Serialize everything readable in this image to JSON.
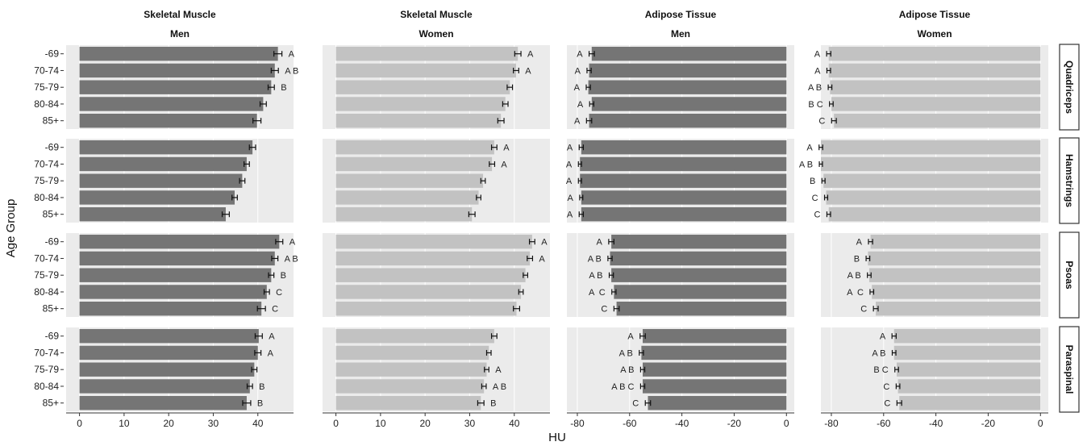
{
  "chart_data": {
    "type": "bar",
    "orientation": "horizontal",
    "xlabel": "HU",
    "ylabel": "Age Group",
    "categories": [
      "-69",
      "70-74",
      "75-79",
      "80-84",
      "85+"
    ],
    "colors": {
      "men": "#757575",
      "women": "#c2c2c2",
      "panel_bg": "#ebebeb"
    },
    "columns": [
      {
        "id": "sm-men",
        "title_line1": "Skeletal Muscle",
        "title_line2": "Men",
        "sex": "men",
        "xlim": [
          -3,
          48
        ],
        "ticks": [
          0,
          10,
          20,
          30,
          40
        ]
      },
      {
        "id": "sm-women",
        "title_line1": "Skeletal Muscle",
        "title_line2": "Women",
        "sex": "women",
        "xlim": [
          -3,
          48
        ],
        "ticks": [
          0,
          10,
          20,
          30,
          40
        ]
      },
      {
        "id": "at-men",
        "title_line1": "Adipose Tissue",
        "title_line2": "Men",
        "sex": "men",
        "xlim": [
          -84,
          3
        ],
        "ticks": [
          -80,
          -60,
          -40,
          -20,
          0
        ]
      },
      {
        "id": "at-women",
        "title_line1": "Adipose Tissue",
        "title_line2": "Women",
        "sex": "women",
        "xlim": [
          -84,
          3
        ],
        "ticks": [
          -80,
          -60,
          -40,
          -20,
          0
        ]
      }
    ],
    "rows": [
      {
        "muscle": "Quadriceps",
        "values": [
          [
            44.5,
            43.8,
            43.0,
            41.2,
            39.8
          ],
          [
            40.8,
            40.4,
            39.0,
            38.0,
            37.0
          ],
          [
            -74.5,
            -75.5,
            -75.8,
            -74.5,
            -75.5
          ],
          [
            -81.0,
            -81.0,
            -80.5,
            -80.0,
            -79.0
          ]
        ],
        "errors": [
          [
            0.9,
            0.8,
            0.7,
            0.7,
            0.9
          ],
          [
            0.7,
            0.6,
            0.6,
            0.6,
            0.7
          ],
          [
            1.0,
            0.8,
            0.8,
            0.8,
            1.0
          ],
          [
            0.8,
            0.7,
            0.7,
            0.7,
            0.9
          ]
        ],
        "labels": [
          [
            "A",
            "A B",
            "B",
            "",
            ""
          ],
          [
            "A",
            "A",
            "",
            "",
            ""
          ],
          [
            "A",
            "A",
            "A",
            "A",
            "A"
          ],
          [
            "A",
            "A",
            "A B",
            "B C",
            "C"
          ]
        ]
      },
      {
        "muscle": "Hamstrings",
        "values": [
          [
            38.8,
            37.5,
            36.5,
            34.8,
            32.8
          ],
          [
            35.5,
            35.0,
            33.0,
            32.0,
            30.5
          ],
          [
            -78.5,
            -79.0,
            -79.0,
            -78.5,
            -78.5
          ],
          [
            -84.0,
            -84.0,
            -83.0,
            -82.0,
            -81.0
          ]
        ],
        "errors": [
          [
            0.7,
            0.6,
            0.6,
            0.6,
            0.8
          ],
          [
            0.6,
            0.6,
            0.5,
            0.5,
            0.7
          ],
          [
            0.8,
            0.6,
            0.6,
            0.6,
            0.8
          ],
          [
            0.7,
            0.6,
            0.6,
            0.6,
            0.7
          ]
        ],
        "labels": [
          [
            "",
            "",
            "",
            "",
            ""
          ],
          [
            "A",
            "A",
            "",
            "",
            ""
          ],
          [
            "A",
            "A",
            "A",
            "A",
            "A"
          ],
          [
            "A",
            "A B",
            "B",
            "C",
            "C"
          ]
        ]
      },
      {
        "muscle": "Psoas",
        "values": [
          [
            44.8,
            43.8,
            43.0,
            42.0,
            40.8
          ],
          [
            44.0,
            43.5,
            42.5,
            41.5,
            40.5
          ],
          [
            -67.0,
            -67.5,
            -67.0,
            -66.0,
            -65.0
          ],
          [
            -65.0,
            -66.0,
            -65.5,
            -64.5,
            -63.0
          ]
        ],
        "errors": [
          [
            0.8,
            0.7,
            0.6,
            0.6,
            0.9
          ],
          [
            0.6,
            0.6,
            0.5,
            0.5,
            0.7
          ],
          [
            1.0,
            0.8,
            0.8,
            0.8,
            1.0
          ],
          [
            0.8,
            0.7,
            0.7,
            0.7,
            0.9
          ]
        ],
        "labels": [
          [
            "A",
            "A B",
            "B",
            "C",
            "C"
          ],
          [
            "A",
            "A",
            "",
            "",
            ""
          ],
          [
            "A",
            "A B",
            "A B",
            "A  C",
            "C"
          ],
          [
            "A",
            "B",
            "A B",
            "A  C",
            "C"
          ]
        ]
      },
      {
        "muscle": "Paraspinal",
        "values": [
          [
            40.2,
            40.0,
            39.2,
            38.2,
            37.5
          ],
          [
            35.5,
            34.3,
            33.8,
            33.2,
            32.5
          ],
          [
            -55.0,
            -55.5,
            -55.0,
            -55.0,
            -53.0
          ],
          [
            -56.0,
            -56.0,
            -55.0,
            -54.5,
            -54.0
          ]
        ],
        "errors": [
          [
            0.8,
            0.7,
            0.6,
            0.6,
            0.9
          ],
          [
            0.6,
            0.5,
            0.5,
            0.5,
            0.7
          ],
          [
            1.0,
            0.8,
            0.8,
            0.8,
            1.0
          ],
          [
            0.8,
            0.7,
            0.7,
            0.7,
            0.9
          ]
        ],
        "labels": [
          [
            "A",
            "A",
            "",
            "B",
            "B"
          ],
          [
            "",
            "",
            "A",
            "A B",
            "B"
          ],
          [
            "A",
            "A B",
            "A B",
            "A B C",
            "C"
          ],
          [
            "A",
            "A B",
            "B C",
            "C",
            "C"
          ]
        ]
      }
    ]
  }
}
